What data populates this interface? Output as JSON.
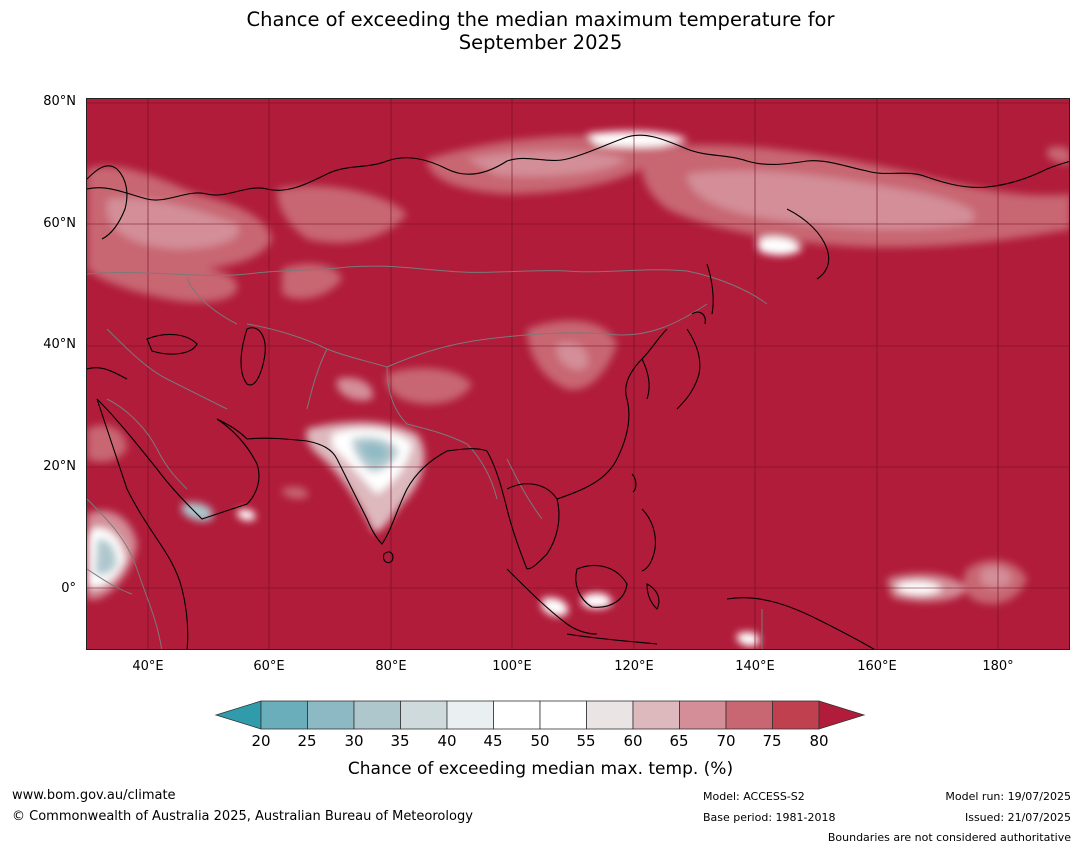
{
  "title": {
    "line1": "Chance of exceeding the median maximum temperature for",
    "line2": "September 2025"
  },
  "map": {
    "lat_labels": [
      "80°N",
      "60°N",
      "40°N",
      "20°N",
      "0°"
    ],
    "lon_labels": [
      "40°E",
      "60°E",
      "80°E",
      "100°E",
      "120°E",
      "140°E",
      "160°E",
      "180°"
    ],
    "extent": {
      "lon_min": 30,
      "lon_max": 192,
      "lat_min": -10,
      "lat_max": 81
    },
    "colors": {
      "ocean_land_fill": "#b01c3a",
      "grid_line": "#6e0f22",
      "coastline": "#000000",
      "border": "#7a7a7a"
    }
  },
  "colorbar": {
    "ticks": [
      "20",
      "25",
      "30",
      "35",
      "40",
      "45",
      "50",
      "55",
      "60",
      "65",
      "70",
      "75",
      "80"
    ],
    "colors": [
      "#2f9bab",
      "#6aaebb",
      "#8db9c4",
      "#aec7cd",
      "#cfdadc",
      "#eaf0f1",
      "#ffffff",
      "#ffffff",
      "#ebe4e5",
      "#ddb8bd",
      "#d38e98",
      "#c86672",
      "#c1404f",
      "#b01c3a"
    ],
    "label": "Chance of exceeding median max. temp. (%)"
  },
  "footer": {
    "website": "www.bom.gov.au/climate",
    "copyright": "© Commonwealth of Australia 2025, Australian Bureau of Meteorology",
    "model": "Model: ACCESS-S2",
    "base_period": "Base period: 1981-2018",
    "model_run": "Model run: 19/07/2025",
    "issued": "Issued: 21/07/2025",
    "disclaimer": "Boundaries are not considered authoritative"
  }
}
